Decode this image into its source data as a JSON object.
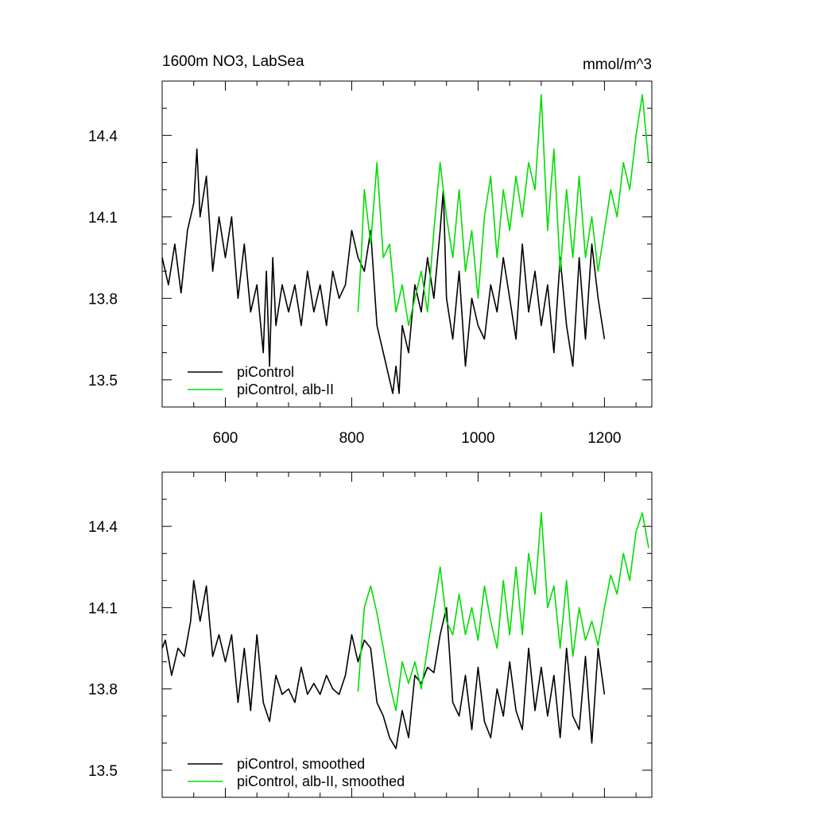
{
  "chart_data": [
    {
      "type": "line",
      "title_left": "1600m NO3, LabSea",
      "title_right": "mmol/m^3",
      "xlim": [
        500,
        1275
      ],
      "ylim": [
        13.4,
        14.6
      ],
      "xticks": [
        600,
        800,
        1000,
        1200
      ],
      "yticks": [
        13.5,
        13.8,
        14.1,
        14.4
      ],
      "xtick_labels": [
        "600",
        "800",
        "1000",
        "1200"
      ],
      "ytick_labels": [
        "13.5",
        "13.8",
        "14.1",
        "14.4"
      ],
      "grid": false,
      "legend_position": "bottom-left",
      "series": [
        {
          "name": "piControl",
          "color": "#000000",
          "x": [
            500,
            510,
            520,
            530,
            540,
            550,
            555,
            560,
            570,
            580,
            590,
            600,
            610,
            620,
            630,
            640,
            650,
            660,
            665,
            670,
            675,
            680,
            690,
            700,
            710,
            720,
            730,
            740,
            750,
            760,
            770,
            780,
            790,
            800,
            810,
            820,
            830,
            840,
            850,
            860,
            865,
            870,
            875,
            880,
            890,
            900,
            910,
            920,
            930,
            940,
            945,
            950,
            960,
            970,
            980,
            990,
            1000,
            1010,
            1020,
            1030,
            1040,
            1050,
            1060,
            1070,
            1080,
            1090,
            1100,
            1110,
            1120,
            1130,
            1140,
            1150,
            1160,
            1170,
            1180,
            1190,
            1200
          ],
          "values": [
            13.95,
            13.85,
            14.0,
            13.82,
            14.05,
            14.15,
            14.35,
            14.1,
            14.25,
            13.9,
            14.1,
            13.95,
            14.1,
            13.8,
            14.0,
            13.75,
            13.85,
            13.6,
            13.9,
            13.55,
            13.95,
            13.7,
            13.85,
            13.75,
            13.85,
            13.7,
            13.9,
            13.75,
            13.85,
            13.7,
            13.9,
            13.8,
            13.85,
            14.05,
            13.95,
            13.9,
            14.05,
            13.7,
            13.6,
            13.5,
            13.45,
            13.55,
            13.45,
            13.7,
            13.6,
            13.85,
            13.75,
            13.95,
            13.8,
            14.05,
            14.2,
            13.8,
            13.65,
            13.9,
            13.55,
            13.8,
            13.7,
            13.65,
            13.85,
            13.75,
            13.95,
            13.8,
            13.65,
            14.0,
            13.75,
            13.9,
            13.7,
            13.85,
            13.6,
            13.95,
            13.7,
            13.55,
            13.95,
            13.65,
            14.0,
            13.8,
            13.65
          ]
        },
        {
          "name": "piControl, alb-II",
          "color": "#00dd00",
          "x": [
            810,
            815,
            820,
            830,
            840,
            850,
            860,
            870,
            880,
            890,
            900,
            910,
            920,
            930,
            940,
            950,
            960,
            970,
            980,
            990,
            1000,
            1010,
            1020,
            1030,
            1040,
            1050,
            1060,
            1070,
            1080,
            1090,
            1100,
            1110,
            1120,
            1130,
            1140,
            1150,
            1160,
            1170,
            1180,
            1190,
            1200,
            1210,
            1220,
            1230,
            1240,
            1250,
            1260,
            1270
          ],
          "values": [
            13.75,
            13.95,
            14.2,
            14.0,
            14.3,
            13.95,
            14.0,
            13.75,
            13.85,
            13.7,
            13.8,
            13.9,
            13.75,
            14.05,
            14.3,
            14.1,
            13.95,
            14.2,
            13.9,
            14.05,
            13.8,
            14.1,
            14.25,
            13.95,
            14.2,
            14.05,
            14.25,
            14.1,
            14.3,
            14.2,
            14.55,
            14.05,
            14.35,
            13.9,
            14.2,
            13.95,
            14.25,
            13.95,
            14.1,
            13.9,
            14.05,
            14.2,
            14.1,
            14.3,
            14.2,
            14.4,
            14.55,
            14.3
          ]
        }
      ]
    },
    {
      "type": "line",
      "xlim": [
        500,
        1275
      ],
      "ylim": [
        13.4,
        14.6
      ],
      "xticks": [
        600,
        800,
        1000,
        1200
      ],
      "yticks": [
        13.5,
        13.8,
        14.1,
        14.4
      ],
      "ytick_labels": [
        "13.5",
        "13.8",
        "14.1",
        "14.4"
      ],
      "grid": false,
      "legend_position": "bottom-left",
      "series": [
        {
          "name": "piControl, smoothed",
          "color": "#000000",
          "x": [
            500,
            505,
            515,
            525,
            535,
            545,
            550,
            560,
            570,
            580,
            590,
            600,
            610,
            620,
            630,
            640,
            650,
            660,
            670,
            680,
            690,
            700,
            710,
            720,
            730,
            740,
            750,
            760,
            770,
            780,
            790,
            800,
            810,
            820,
            830,
            840,
            850,
            860,
            870,
            880,
            890,
            900,
            910,
            920,
            930,
            940,
            950,
            960,
            970,
            980,
            990,
            1000,
            1010,
            1020,
            1030,
            1040,
            1050,
            1060,
            1070,
            1080,
            1090,
            1100,
            1110,
            1120,
            1130,
            1140,
            1150,
            1160,
            1170,
            1180,
            1190,
            1200
          ],
          "values": [
            13.95,
            13.98,
            13.85,
            13.95,
            13.92,
            14.05,
            14.2,
            14.05,
            14.18,
            13.92,
            14.0,
            13.9,
            14.0,
            13.75,
            13.95,
            13.72,
            14.0,
            13.75,
            13.68,
            13.85,
            13.78,
            13.8,
            13.75,
            13.88,
            13.78,
            13.82,
            13.78,
            13.85,
            13.8,
            13.78,
            13.85,
            14.0,
            13.9,
            13.98,
            13.95,
            13.75,
            13.7,
            13.62,
            13.58,
            13.72,
            13.62,
            13.85,
            13.82,
            13.88,
            13.86,
            14.0,
            14.1,
            13.75,
            13.7,
            13.85,
            13.65,
            13.88,
            13.68,
            13.62,
            13.8,
            13.7,
            13.9,
            13.72,
            13.65,
            13.95,
            13.72,
            13.88,
            13.7,
            13.85,
            13.62,
            13.95,
            13.7,
            13.65,
            13.92,
            13.6,
            13.95,
            13.78
          ]
        },
        {
          "name": "piControl, alb-II, smoothed",
          "color": "#00dd00",
          "x": [
            810,
            815,
            820,
            830,
            840,
            850,
            860,
            870,
            880,
            890,
            900,
            910,
            920,
            930,
            940,
            950,
            960,
            970,
            980,
            990,
            1000,
            1010,
            1020,
            1030,
            1040,
            1050,
            1060,
            1070,
            1080,
            1090,
            1100,
            1110,
            1120,
            1130,
            1140,
            1150,
            1160,
            1170,
            1180,
            1190,
            1200,
            1210,
            1220,
            1230,
            1240,
            1250,
            1260,
            1270
          ],
          "values": [
            13.79,
            13.95,
            14.1,
            14.18,
            14.08,
            13.95,
            13.82,
            13.72,
            13.9,
            13.82,
            13.9,
            13.8,
            13.95,
            14.1,
            14.25,
            14.05,
            14.0,
            14.15,
            14.0,
            14.1,
            13.98,
            14.18,
            14.05,
            13.95,
            14.2,
            14.0,
            14.25,
            14.0,
            14.3,
            14.15,
            14.45,
            14.1,
            14.18,
            13.95,
            14.2,
            13.92,
            14.1,
            13.98,
            14.05,
            13.96,
            14.1,
            14.22,
            14.15,
            14.3,
            14.2,
            14.38,
            14.45,
            14.32
          ]
        }
      ]
    }
  ]
}
